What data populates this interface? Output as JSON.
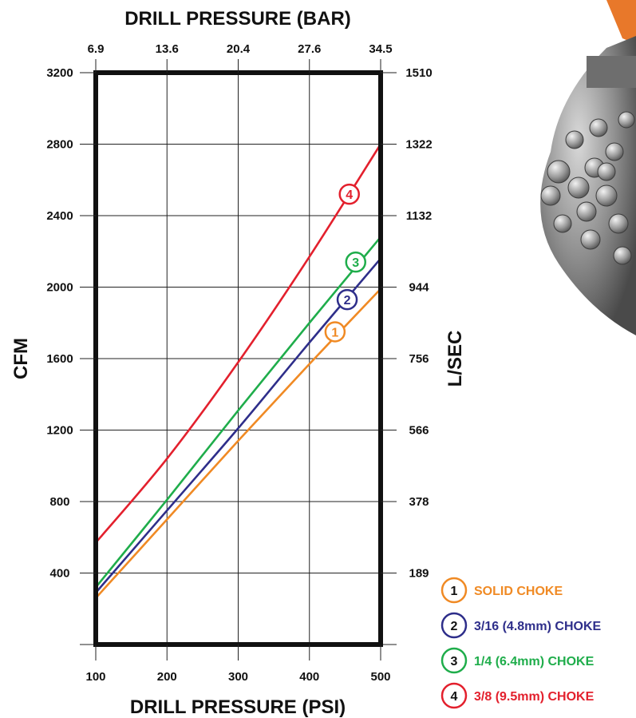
{
  "chart_data": {
    "type": "line",
    "title": "DRILL PRESSURE (BAR)",
    "xlabel": "DRILL PRESSURE (PSI)",
    "ylabel": "CFM",
    "y2label": "L/SEC",
    "x_ticks": [
      "100",
      "200",
      "300",
      "400",
      "500"
    ],
    "x_top_ticks": [
      "6.9",
      "13.6",
      "20.4",
      "27.6",
      "34.5"
    ],
    "y_ticks": [
      "400",
      "800",
      "1200",
      "1600",
      "2000",
      "2400",
      "2800",
      "3200"
    ],
    "y2_ticks": [
      "189",
      "378",
      "566",
      "756",
      "944",
      "1132",
      "1322",
      "1510"
    ],
    "xlim": [
      100,
      500
    ],
    "ylim": [
      0,
      3200
    ],
    "grid": true,
    "legend_position": "bottom-right",
    "series": [
      {
        "marker": "1",
        "name": "SOLID CHOKE",
        "color": "#f08a24",
        "points": [
          [
            100,
            260
          ],
          [
            200,
            700
          ],
          [
            300,
            1140
          ],
          [
            400,
            1570
          ],
          [
            500,
            1990
          ]
        ]
      },
      {
        "marker": "2",
        "name": "3/16 (4.8mm) CHOKE",
        "color": "#2e2e8a",
        "points": [
          [
            100,
            290
          ],
          [
            200,
            750
          ],
          [
            300,
            1210
          ],
          [
            400,
            1690
          ],
          [
            500,
            2160
          ]
        ]
      },
      {
        "marker": "3",
        "name": "1/4 (6.4mm) CHOKE",
        "color": "#1fad4b",
        "points": [
          [
            100,
            320
          ],
          [
            200,
            810
          ],
          [
            300,
            1310
          ],
          [
            400,
            1800
          ],
          [
            500,
            2280
          ]
        ]
      },
      {
        "marker": "4",
        "name": "3/8 (9.5mm) CHOKE",
        "color": "#e3202d",
        "points": [
          [
            100,
            570
          ],
          [
            200,
            1040
          ],
          [
            300,
            1580
          ],
          [
            400,
            2170
          ],
          [
            500,
            2800
          ]
        ]
      }
    ],
    "markers": [
      {
        "label": "1",
        "color": "#f08a24",
        "x": 436,
        "y": 1750
      },
      {
        "label": "2",
        "color": "#2e2e8a",
        "x": 453,
        "y": 1930
      },
      {
        "label": "3",
        "color": "#1fad4b",
        "x": 465,
        "y": 2140
      },
      {
        "label": "4",
        "color": "#e3202d",
        "x": 456,
        "y": 2520
      }
    ]
  }
}
